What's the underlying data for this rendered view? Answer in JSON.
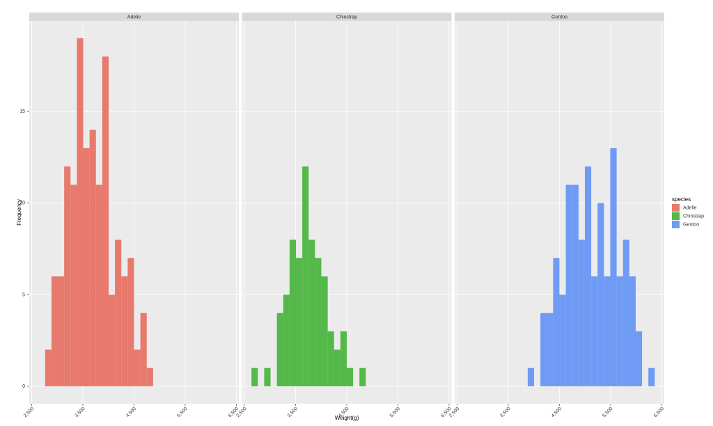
{
  "chart_data": {
    "type": "histogram",
    "xlabel": "Weight(g)",
    "ylabel": "Frequency",
    "legend_title": "species",
    "legend": "right",
    "grid": true,
    "bins": [
      2637.9,
      2762.1,
      2886.2,
      3010.3,
      3134.5,
      3258.6,
      3382.8,
      3506.9,
      3631.0,
      3755.2,
      3879.3,
      4003.4,
      4127.6,
      4251.7,
      4375.9,
      4500.0,
      4624.1,
      4748.3,
      4872.4,
      4996.6,
      5120.7,
      5244.8,
      5369.0,
      5493.1,
      5617.2,
      5741.4,
      5865.5,
      5989.7,
      6113.8,
      6237.9,
      6362.1
    ],
    "series": [
      {
        "name": "Adelie",
        "color": "#E8796D",
        "values": [
          0,
          2,
          6,
          6,
          12,
          11,
          19,
          13,
          14,
          11,
          18,
          5,
          8,
          6,
          7,
          2,
          4,
          1,
          0,
          0,
          0,
          0,
          0,
          0,
          0,
          0,
          0,
          0,
          0,
          0
        ]
      },
      {
        "name": "Chinstrap",
        "color": "#54B948",
        "values": [
          1,
          0,
          1,
          0,
          4,
          5,
          8,
          7,
          12,
          8,
          7,
          6,
          3,
          2,
          3,
          1,
          0,
          1,
          0,
          0,
          0,
          0,
          0,
          0,
          0,
          0,
          0,
          0,
          0,
          0
        ]
      },
      {
        "name": "Gentoo",
        "color": "#6F9BF4",
        "values": [
          0,
          0,
          0,
          0,
          0,
          0,
          0,
          0,
          0,
          0,
          1,
          0,
          4,
          4,
          7,
          5,
          11,
          11,
          8,
          12,
          6,
          10,
          6,
          13,
          6,
          8,
          6,
          3,
          0,
          1
        ]
      }
    ],
    "xlim": [
      2451.7,
      6548.3
    ],
    "xticks": [
      {
        "value": 2500,
        "label": "2,500"
      },
      {
        "value": 3500,
        "label": "3,500"
      },
      {
        "value": 4500,
        "label": "4,500"
      },
      {
        "value": 5500,
        "label": "5,500"
      },
      {
        "value": 6500,
        "label": "6,500"
      }
    ],
    "ylim": [
      -0.95,
      19.95
    ],
    "yticks": [
      0,
      5,
      10,
      15
    ]
  }
}
